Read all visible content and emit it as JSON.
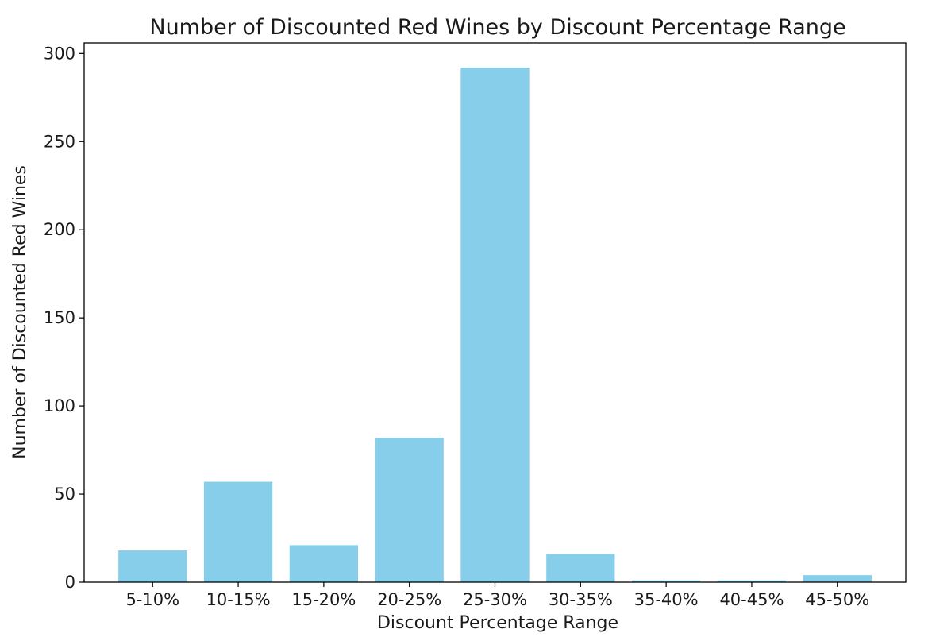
{
  "chart_data": {
    "type": "bar",
    "title": "Number of Discounted Red Wines by Discount Percentage Range",
    "xlabel": "Discount Percentage Range",
    "ylabel": "Number of Discounted Red Wines",
    "categories": [
      "5-10%",
      "10-15%",
      "15-20%",
      "20-25%",
      "25-30%",
      "30-35%",
      "35-40%",
      "40-45%",
      "45-50%"
    ],
    "values": [
      18,
      57,
      21,
      82,
      292,
      16,
      1,
      1,
      4
    ],
    "ylim": [
      0,
      306
    ],
    "yticks": [
      0,
      50,
      100,
      150,
      200,
      250,
      300
    ],
    "grid": false,
    "bar_color": "#87ceeb"
  }
}
